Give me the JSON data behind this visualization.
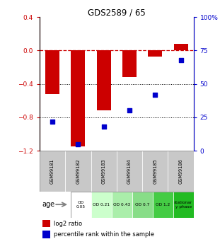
{
  "title": "GDS2589 / 65",
  "samples": [
    "GSM99181",
    "GSM99182",
    "GSM99183",
    "GSM99184",
    "GSM99185",
    "GSM99186"
  ],
  "log2_ratio": [
    -0.52,
    -1.15,
    -0.72,
    -0.32,
    -0.07,
    0.08
  ],
  "percentile_rank": [
    22,
    5,
    18,
    30,
    42,
    68
  ],
  "bar_color": "#cc0000",
  "dot_color": "#0000cc",
  "ylim_left": [
    -1.2,
    0.4
  ],
  "ylim_right": [
    0,
    100
  ],
  "yticks_left": [
    0.4,
    0.0,
    -0.4,
    -0.8,
    -1.2
  ],
  "yticks_right": [
    100,
    75,
    50,
    25,
    0
  ],
  "ytick_labels_right": [
    "100%",
    "75",
    "50",
    "25",
    "0"
  ],
  "dotted_lines": [
    -0.4,
    -0.8
  ],
  "age_labels": [
    "OD\n0.05",
    "OD 0.21",
    "OD 0.43",
    "OD 0.7",
    "OD 1.2",
    "stationar\ny phase"
  ],
  "age_colors": [
    "#ffffff",
    "#ccffcc",
    "#aaeeaa",
    "#88dd88",
    "#44cc44",
    "#22bb22"
  ],
  "sample_bg_color": "#c8c8c8",
  "bar_width": 0.55,
  "legend_red_label": "log2 ratio",
  "legend_blue_label": "percentile rank within the sample",
  "age_row_label": "age"
}
